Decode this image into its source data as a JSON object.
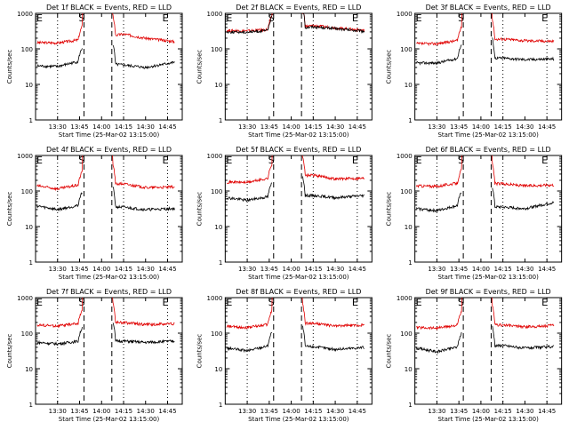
{
  "figure": {
    "ylabel": "Counts/sec",
    "xlabel": "Start Time (25-Mar-02 13:15:00)"
  },
  "chart_data": [
    {
      "type": "line",
      "title": "Det 1f BLACK = Events, RED = LLD",
      "xlabel": "Start Time (25-Mar-02 13:15:00)",
      "ylabel": "Counts/sec",
      "yscale": "log",
      "ylim": [
        1,
        1000
      ],
      "xlim": [
        "13:15",
        "14:55"
      ],
      "xticks": [
        "13:30",
        "13:45",
        "14:00",
        "14:15",
        "14:30",
        "14:45"
      ],
      "yticks": [
        "1",
        "10",
        "100",
        "1000"
      ],
      "markers": {
        "dotted": [
          "13:30",
          "14:15",
          "14:45"
        ],
        "dashed": [
          "13:48",
          "14:07"
        ]
      },
      "annotations": [
        "E",
        "S",
        "E"
      ],
      "series": [
        {
          "color": "red",
          "values": [
            {
              "t": "13:16",
              "y": 150
            },
            {
              "t": "13:30",
              "y": 148
            },
            {
              "t": "13:45",
              "y": 180
            },
            {
              "t": "14:15",
              "y": 260
            },
            {
              "t": "14:30",
              "y": 200
            },
            {
              "t": "14:50",
              "y": 160
            }
          ]
        },
        {
          "color": "black",
          "values": [
            {
              "t": "13:16",
              "y": 33
            },
            {
              "t": "13:30",
              "y": 32
            },
            {
              "t": "13:45",
              "y": 45
            },
            {
              "t": "14:15",
              "y": 35
            },
            {
              "t": "14:30",
              "y": 30
            },
            {
              "t": "14:50",
              "y": 42
            }
          ]
        }
      ]
    },
    {
      "type": "line",
      "title": "Det 2f BLACK = Events, RED = LLD",
      "xlabel": "Start Time (25-Mar-02 13:15:00)",
      "ylabel": "Counts/sec",
      "yscale": "log",
      "ylim": [
        1,
        1000
      ],
      "xlim": [
        "13:15",
        "14:55"
      ],
      "xticks": [
        "13:30",
        "13:45",
        "14:00",
        "14:15",
        "14:30",
        "14:45"
      ],
      "yticks": [
        "1",
        "10",
        "100",
        "1000"
      ],
      "markers": {
        "dotted": [
          "13:30",
          "14:15",
          "14:45"
        ],
        "dashed": [
          "13:48",
          "14:07"
        ]
      },
      "annotations": [
        "E",
        "S",
        "E"
      ],
      "series": [
        {
          "color": "red",
          "values": [
            {
              "t": "13:16",
              "y": 330
            },
            {
              "t": "13:30",
              "y": 320
            },
            {
              "t": "13:45",
              "y": 350
            },
            {
              "t": "14:15",
              "y": 450
            },
            {
              "t": "14:30",
              "y": 390
            },
            {
              "t": "14:50",
              "y": 330
            }
          ]
        },
        {
          "color": "black",
          "values": [
            {
              "t": "13:16",
              "y": 300
            },
            {
              "t": "13:30",
              "y": 295
            },
            {
              "t": "13:45",
              "y": 330
            },
            {
              "t": "14:15",
              "y": 420
            },
            {
              "t": "14:30",
              "y": 370
            },
            {
              "t": "14:50",
              "y": 310
            }
          ]
        }
      ]
    },
    {
      "type": "line",
      "title": "Det 3f BLACK = Events, RED = LLD",
      "xlabel": "Start Time (25-Mar-02 13:15:00)",
      "ylabel": "Counts/sec",
      "yscale": "log",
      "ylim": [
        1,
        1000
      ],
      "xlim": [
        "13:15",
        "14:55"
      ],
      "xticks": [
        "13:30",
        "13:45",
        "14:00",
        "14:15",
        "14:30",
        "14:45"
      ],
      "yticks": [
        "1",
        "10",
        "100",
        "1000"
      ],
      "markers": {
        "dotted": [
          "13:30",
          "14:15",
          "14:45"
        ],
        "dashed": [
          "13:48",
          "14:07"
        ]
      },
      "annotations": [
        "E",
        "S",
        "E"
      ],
      "series": [
        {
          "color": "red",
          "values": [
            {
              "t": "13:16",
              "y": 140
            },
            {
              "t": "13:30",
              "y": 140
            },
            {
              "t": "13:45",
              "y": 175
            },
            {
              "t": "14:15",
              "y": 190
            },
            {
              "t": "14:30",
              "y": 170
            },
            {
              "t": "14:50",
              "y": 165
            }
          ]
        },
        {
          "color": "black",
          "values": [
            {
              "t": "13:16",
              "y": 40
            },
            {
              "t": "13:30",
              "y": 40
            },
            {
              "t": "13:45",
              "y": 55
            },
            {
              "t": "14:15",
              "y": 55
            },
            {
              "t": "14:30",
              "y": 50
            },
            {
              "t": "14:50",
              "y": 52
            }
          ]
        }
      ]
    },
    {
      "type": "line",
      "title": "Det 4f BLACK = Events, RED = LLD",
      "xlabel": "Start Time (25-Mar-02 13:15:00)",
      "ylabel": "Counts/sec",
      "yscale": "log",
      "ylim": [
        1,
        1000
      ],
      "xlim": [
        "13:15",
        "14:55"
      ],
      "xticks": [
        "13:30",
        "13:45",
        "14:00",
        "14:15",
        "14:30",
        "14:45"
      ],
      "yticks": [
        "1",
        "10",
        "100",
        "1000"
      ],
      "markers": {
        "dotted": [
          "13:30",
          "14:15",
          "14:45"
        ],
        "dashed": [
          "13:48",
          "14:07"
        ]
      },
      "annotations": [
        "E",
        "S",
        "E"
      ],
      "series": [
        {
          "color": "red",
          "values": [
            {
              "t": "13:16",
              "y": 140
            },
            {
              "t": "13:30",
              "y": 115
            },
            {
              "t": "13:45",
              "y": 150
            },
            {
              "t": "14:15",
              "y": 160
            },
            {
              "t": "14:30",
              "y": 125
            },
            {
              "t": "14:50",
              "y": 130
            }
          ]
        },
        {
          "color": "black",
          "values": [
            {
              "t": "13:16",
              "y": 38
            },
            {
              "t": "13:30",
              "y": 30
            },
            {
              "t": "13:45",
              "y": 40
            },
            {
              "t": "14:15",
              "y": 35
            },
            {
              "t": "14:30",
              "y": 30
            },
            {
              "t": "14:50",
              "y": 32
            }
          ]
        }
      ]
    },
    {
      "type": "line",
      "title": "Det 5f BLACK = Events, RED = LLD",
      "xlabel": "Start Time (25-Mar-02 13:15:00)",
      "ylabel": "Counts/sec",
      "yscale": "log",
      "ylim": [
        1,
        1000
      ],
      "xlim": [
        "13:15",
        "14:55"
      ],
      "xticks": [
        "13:30",
        "13:45",
        "14:00",
        "14:15",
        "14:30",
        "14:45"
      ],
      "yticks": [
        "1",
        "10",
        "100",
        "1000"
      ],
      "markers": {
        "dotted": [
          "13:30",
          "14:15",
          "14:45"
        ],
        "dashed": [
          "13:48",
          "14:07"
        ]
      },
      "annotations": [
        "E",
        "S",
        "E"
      ],
      "series": [
        {
          "color": "red",
          "values": [
            {
              "t": "13:16",
              "y": 180
            },
            {
              "t": "13:30",
              "y": 175
            },
            {
              "t": "13:45",
              "y": 230
            },
            {
              "t": "14:15",
              "y": 280
            },
            {
              "t": "14:30",
              "y": 220
            },
            {
              "t": "14:50",
              "y": 230
            }
          ]
        },
        {
          "color": "black",
          "values": [
            {
              "t": "13:16",
              "y": 65
            },
            {
              "t": "13:30",
              "y": 55
            },
            {
              "t": "13:45",
              "y": 70
            },
            {
              "t": "14:15",
              "y": 75
            },
            {
              "t": "14:30",
              "y": 65
            },
            {
              "t": "14:50",
              "y": 75
            }
          ]
        }
      ]
    },
    {
      "type": "line",
      "title": "Det 6f BLACK = Events, RED = LLD",
      "xlabel": "Start Time (25-Mar-02 13:15:00)",
      "ylabel": "Counts/sec",
      "yscale": "log",
      "ylim": [
        1,
        1000
      ],
      "xlim": [
        "13:15",
        "14:55"
      ],
      "xticks": [
        "13:30",
        "13:45",
        "14:00",
        "14:15",
        "14:30",
        "14:45"
      ],
      "yticks": [
        "1",
        "10",
        "100",
        "1000"
      ],
      "markers": {
        "dotted": [
          "13:30",
          "14:15",
          "14:45"
        ],
        "dashed": [
          "13:48",
          "14:07"
        ]
      },
      "annotations": [
        "E",
        "S",
        "E"
      ],
      "series": [
        {
          "color": "red",
          "values": [
            {
              "t": "13:16",
              "y": 140
            },
            {
              "t": "13:30",
              "y": 135
            },
            {
              "t": "13:45",
              "y": 170
            },
            {
              "t": "14:15",
              "y": 160
            },
            {
              "t": "14:30",
              "y": 140
            },
            {
              "t": "14:50",
              "y": 150
            }
          ]
        },
        {
          "color": "black",
          "values": [
            {
              "t": "13:16",
              "y": 32
            },
            {
              "t": "13:30",
              "y": 28
            },
            {
              "t": "13:45",
              "y": 40
            },
            {
              "t": "14:15",
              "y": 35
            },
            {
              "t": "14:30",
              "y": 32
            },
            {
              "t": "14:50",
              "y": 48
            }
          ]
        }
      ]
    },
    {
      "type": "line",
      "title": "Det 7f BLACK = Events, RED = LLD",
      "xlabel": "Start Time (25-Mar-02 13:15:00)",
      "ylabel": "Counts/sec",
      "yscale": "log",
      "ylim": [
        1,
        1000
      ],
      "xlim": [
        "13:15",
        "14:55"
      ],
      "xticks": [
        "13:30",
        "13:45",
        "14:00",
        "14:15",
        "14:30",
        "14:45"
      ],
      "yticks": [
        "1",
        "10",
        "100",
        "1000"
      ],
      "markers": {
        "dotted": [
          "13:30",
          "14:15",
          "14:45"
        ],
        "dashed": [
          "13:48",
          "14:07"
        ]
      },
      "annotations": [
        "E",
        "S",
        "E"
      ],
      "series": [
        {
          "color": "red",
          "values": [
            {
              "t": "13:16",
              "y": 170
            },
            {
              "t": "13:30",
              "y": 160
            },
            {
              "t": "13:45",
              "y": 190
            },
            {
              "t": "14:15",
              "y": 200
            },
            {
              "t": "14:30",
              "y": 175
            },
            {
              "t": "14:50",
              "y": 185
            }
          ]
        },
        {
          "color": "black",
          "values": [
            {
              "t": "13:16",
              "y": 55
            },
            {
              "t": "13:30",
              "y": 50
            },
            {
              "t": "13:45",
              "y": 60
            },
            {
              "t": "14:15",
              "y": 60
            },
            {
              "t": "14:30",
              "y": 55
            },
            {
              "t": "14:50",
              "y": 60
            }
          ]
        }
      ]
    },
    {
      "type": "line",
      "title": "Det 8f BLACK = Events, RED = LLD",
      "xlabel": "Start Time (25-Mar-02 13:15:00)",
      "ylabel": "Counts/sec",
      "yscale": "log",
      "ylim": [
        1,
        1000
      ],
      "xlim": [
        "13:15",
        "14:55"
      ],
      "xticks": [
        "13:30",
        "13:45",
        "14:00",
        "14:15",
        "14:30",
        "14:45"
      ],
      "yticks": [
        "1",
        "10",
        "100",
        "1000"
      ],
      "markers": {
        "dotted": [
          "13:30",
          "14:15",
          "14:45"
        ],
        "dashed": [
          "13:48",
          "14:07"
        ]
      },
      "annotations": [
        "E",
        "S",
        "E"
      ],
      "series": [
        {
          "color": "red",
          "values": [
            {
              "t": "13:16",
              "y": 155
            },
            {
              "t": "13:30",
              "y": 145
            },
            {
              "t": "13:45",
              "y": 180
            },
            {
              "t": "14:15",
              "y": 190
            },
            {
              "t": "14:30",
              "y": 160
            },
            {
              "t": "14:50",
              "y": 170
            }
          ]
        },
        {
          "color": "black",
          "values": [
            {
              "t": "13:16",
              "y": 38
            },
            {
              "t": "13:30",
              "y": 32
            },
            {
              "t": "13:45",
              "y": 45
            },
            {
              "t": "14:15",
              "y": 42
            },
            {
              "t": "14:30",
              "y": 35
            },
            {
              "t": "14:50",
              "y": 40
            }
          ]
        }
      ]
    },
    {
      "type": "line",
      "title": "Det 9f BLACK = Events, RED = LLD",
      "xlabel": "Start Time (25-Mar-02 13:15:00)",
      "ylabel": "Counts/sec",
      "yscale": "log",
      "ylim": [
        1,
        1000
      ],
      "xlim": [
        "13:15",
        "14:55"
      ],
      "xticks": [
        "13:30",
        "13:45",
        "14:00",
        "14:15",
        "14:30",
        "14:45"
      ],
      "yticks": [
        "1",
        "10",
        "100",
        "1000"
      ],
      "markers": {
        "dotted": [
          "13:30",
          "14:15",
          "14:45"
        ],
        "dashed": [
          "13:48",
          "14:07"
        ]
      },
      "annotations": [
        "E",
        "S",
        "E"
      ],
      "series": [
        {
          "color": "red",
          "values": [
            {
              "t": "13:16",
              "y": 145
            },
            {
              "t": "13:30",
              "y": 140
            },
            {
              "t": "13:45",
              "y": 170
            },
            {
              "t": "14:15",
              "y": 170
            },
            {
              "t": "14:30",
              "y": 150
            },
            {
              "t": "14:50",
              "y": 165
            }
          ]
        },
        {
          "color": "black",
          "values": [
            {
              "t": "13:16",
              "y": 38
            },
            {
              "t": "13:30",
              "y": 30
            },
            {
              "t": "13:45",
              "y": 42
            },
            {
              "t": "14:15",
              "y": 45
            },
            {
              "t": "14:30",
              "y": 38
            },
            {
              "t": "14:50",
              "y": 42
            }
          ]
        }
      ]
    }
  ]
}
